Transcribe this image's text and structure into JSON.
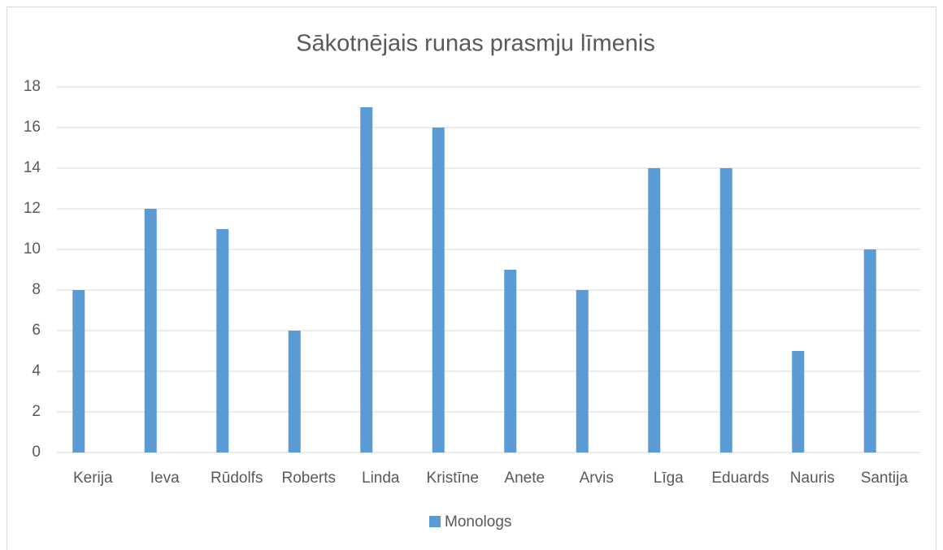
{
  "chart_data": {
    "type": "bar",
    "title": "Sākotnējais runas prasmju līmenis",
    "categories": [
      "Kerija",
      "Ieva",
      "Rūdolfs",
      "Roberts",
      "Linda",
      "Kristīne",
      "Anete",
      "Arvis",
      "Līga",
      "Eduards",
      "Nauris",
      "Santija"
    ],
    "series": [
      {
        "name": "Monologs",
        "color": "#5b9bd5",
        "values": [
          8,
          12,
          11,
          6,
          17,
          16,
          9,
          8,
          14,
          14,
          5,
          10
        ]
      }
    ],
    "ylim": [
      0,
      18
    ],
    "yticks": [
      0,
      2,
      4,
      6,
      8,
      10,
      12,
      14,
      16,
      18
    ],
    "grid": true,
    "legend": "bottom"
  }
}
